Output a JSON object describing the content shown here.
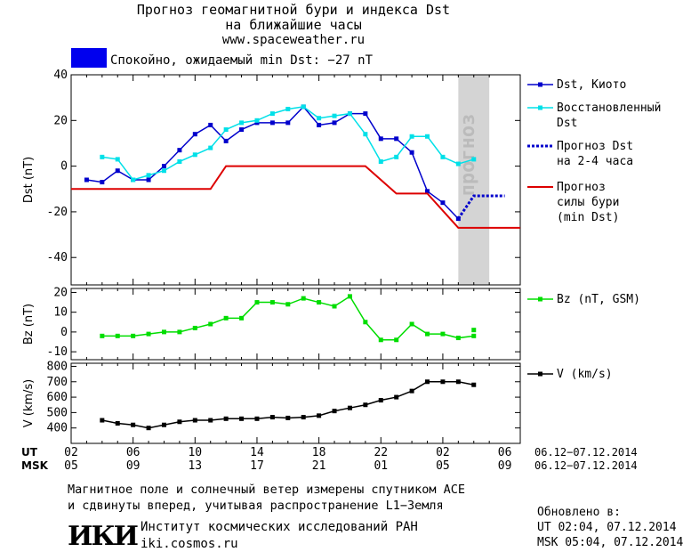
{
  "header": {
    "title_line1": "Прогноз геомагнитной бури и индекса Dst",
    "title_line2": "на ближайшие часы",
    "website": "www.spaceweather.ru",
    "status": "Спокойно, ожидаемый min Dst: −27 nT",
    "status_color": "#0000ee"
  },
  "colors": {
    "dst_kyoto": "#0000cc",
    "dst_restored": "#00e0e8",
    "dst_forecast": "#0000cc",
    "storm_forecast": "#dd0000",
    "bz": "#00dd00",
    "v": "#000000",
    "forecast_band": "#d4d4d4"
  },
  "chart_data": [
    {
      "type": "line",
      "ylabel": "Dst (nT)",
      "ylim": [
        -52,
        40
      ],
      "yticks": [
        40,
        20,
        0,
        -20,
        -40
      ],
      "forecast_band_label": "прогноз",
      "forecast_band_x": [
        24,
        26
      ],
      "series": [
        {
          "name": "Dst, Киото",
          "x": [
            0,
            1,
            2,
            3,
            4,
            5,
            6,
            7,
            8,
            9,
            10,
            11,
            12,
            13,
            14,
            15,
            16,
            17,
            18,
            19,
            20,
            21,
            22,
            23,
            24
          ],
          "y": [
            -6,
            -7,
            -2,
            -6,
            -6,
            0,
            7,
            14,
            18,
            11,
            16,
            19,
            19,
            19,
            26,
            18,
            19,
            23,
            23,
            12,
            12,
            6,
            -11,
            -16,
            -23
          ]
        },
        {
          "name": "Восстановленный Dst",
          "x": [
            1,
            2,
            3,
            4,
            5,
            6,
            7,
            8,
            9,
            10,
            11,
            12,
            13,
            14,
            15,
            16,
            17,
            18,
            19,
            20,
            21,
            22,
            23,
            24,
            25
          ],
          "y": [
            4,
            3,
            -6,
            -4,
            -2,
            2,
            5,
            8,
            16,
            19,
            20,
            23,
            25,
            26,
            21,
            22,
            23,
            14,
            2,
            4,
            13,
            13,
            4,
            1,
            3
          ]
        },
        {
          "name": "Прогноз Dst на 2-4 часа",
          "x": [
            24,
            24.5,
            25,
            25.5,
            26,
            26.5,
            27
          ],
          "y": [
            -23,
            -18,
            -13,
            -13,
            -13,
            -13,
            -13
          ]
        },
        {
          "name": "Прогноз силы бури (min Dst)",
          "x": [
            -1,
            8,
            9,
            18,
            20,
            22,
            24,
            26,
            28
          ],
          "y": [
            -10,
            -10,
            0,
            0,
            -12,
            -12,
            -27,
            -27,
            -27
          ]
        }
      ]
    },
    {
      "type": "line",
      "ylabel": "Bz (nT)",
      "ylim": [
        -14,
        22
      ],
      "yticks": [
        20,
        10,
        0,
        -10
      ],
      "series": [
        {
          "name": "Bz (nT, GSM)",
          "x": [
            1,
            2,
            3,
            4,
            5,
            6,
            7,
            8,
            9,
            10,
            11,
            12,
            13,
            14,
            15,
            16,
            17,
            18,
            19,
            20,
            21,
            22,
            23,
            24,
            25
          ],
          "y": [
            -2,
            -2,
            -2,
            -1,
            0,
            0,
            2,
            4,
            7,
            7,
            15,
            15,
            14,
            17,
            15,
            13,
            18,
            5,
            -4,
            -4,
            4,
            -1,
            -1,
            -3,
            -2
          ]
        },
        {
          "name": "",
          "x": [
            25
          ],
          "y": [
            1
          ]
        }
      ]
    },
    {
      "type": "line",
      "ylabel": "V (km/s)",
      "ylim": [
        300,
        820
      ],
      "yticks": [
        800,
        700,
        600,
        500,
        400
      ],
      "series": [
        {
          "name": "V (km/s)",
          "x": [
            1,
            2,
            3,
            4,
            5,
            6,
            7,
            8,
            9,
            10,
            11,
            12,
            13,
            14,
            15,
            16,
            17,
            18,
            19,
            20,
            21,
            22,
            23,
            24,
            25
          ],
          "y": [
            450,
            430,
            420,
            400,
            420,
            440,
            450,
            450,
            460,
            460,
            460,
            470,
            465,
            470,
            480,
            510,
            530,
            550,
            580,
            600,
            640,
            700,
            700,
            700,
            680
          ]
        }
      ]
    }
  ],
  "x_axis": {
    "row1_label": "UT",
    "row2_label": "MSK",
    "ut_ticks": [
      "02",
      "06",
      "10",
      "14",
      "18",
      "22",
      "02",
      "06"
    ],
    "msk_ticks": [
      "05",
      "09",
      "13",
      "17",
      "21",
      "01",
      "05",
      "09"
    ],
    "range_label": "06.12−07.12.2014"
  },
  "footer": {
    "line1": "Магнитное поле и солнечный ветер измерены спутником ACE",
    "line2": "и сдвинуты вперед, учитывая распространение L1−Земля",
    "logo_text": "ИКИ",
    "institute": "Институт космических исследований РАН",
    "institute_url": "iki.cosmos.ru",
    "updated_label": "Обновлено в:",
    "updated_ut": "UT  02:04, 07.12.2014",
    "updated_msk": "MSK 05:04, 07.12.2014"
  }
}
